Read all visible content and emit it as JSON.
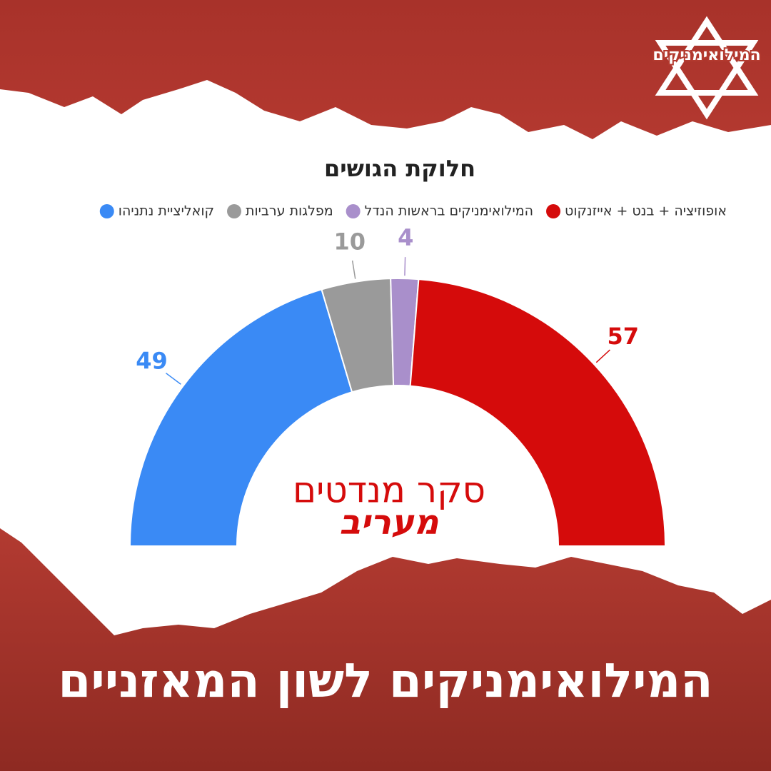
{
  "logo": "המילואימניקים",
  "chart_data": {
    "type": "pie",
    "half": true,
    "donut": true,
    "title": "חלוקת הגושים",
    "categories": [
      "קואליציית נתניהו",
      "מפלגות ערביות",
      "המילואימניקים בראשות הנדל",
      "אופוזיציה + בנט + אייזנקוט"
    ],
    "values": [
      49,
      10,
      4,
      57
    ],
    "colors": [
      "#3a8af5",
      "#9a9a9a",
      "#a98fcb",
      "#d50b0b"
    ],
    "legend": "top"
  },
  "center": {
    "line1": "סקר מנדטים",
    "line2": "מעריב"
  },
  "footer": "המילואימניקים לשון המאזניים"
}
